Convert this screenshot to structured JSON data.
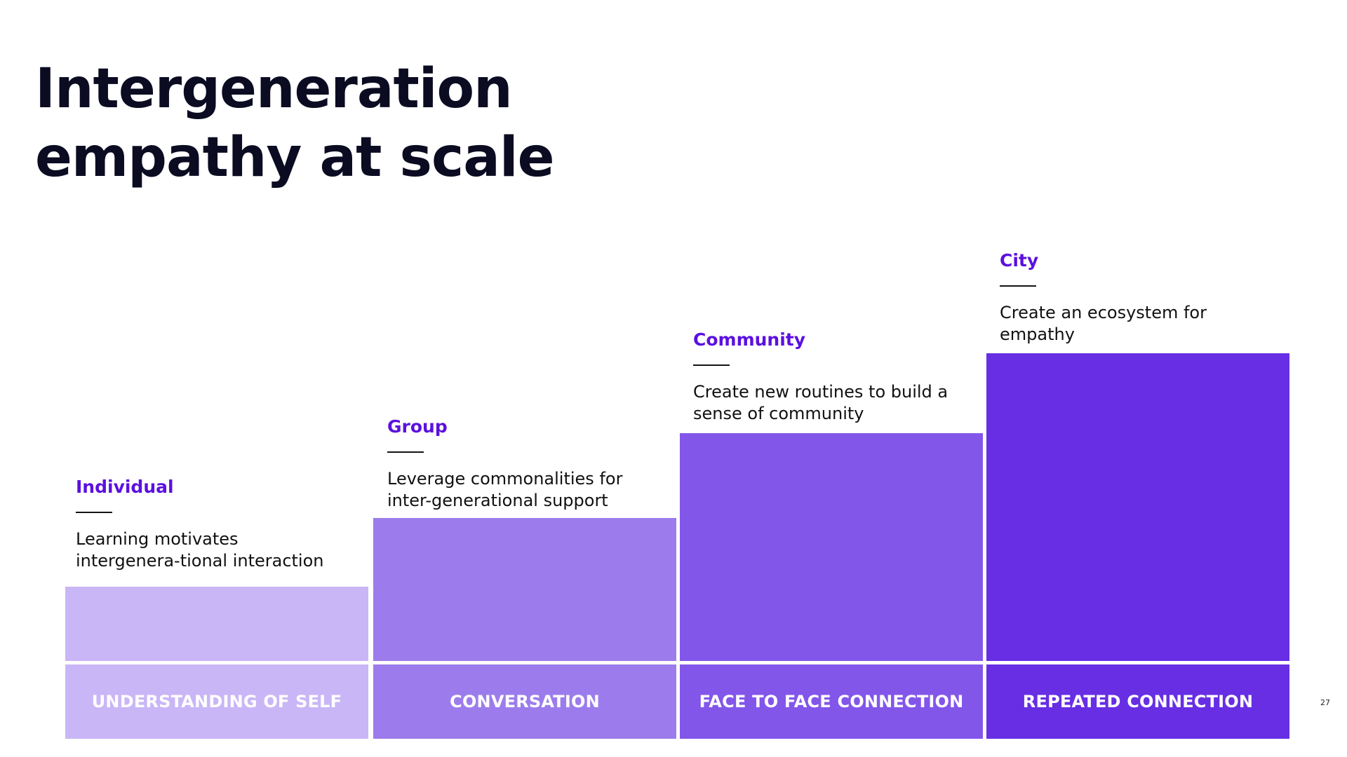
{
  "title": {
    "line1": "Intergeneration",
    "line2": "empathy at scale"
  },
  "stages": [
    {
      "heading": "Individual",
      "description": "Learning motivates intergenera-tional interaction",
      "footer_label": "UNDERSTANDING OF SELF",
      "color": "#c9b6f6"
    },
    {
      "heading": "Group",
      "description": "Leverage commonalities for inter-generational support",
      "footer_label": "CONVERSATION",
      "color": "#9c7cec"
    },
    {
      "heading": "Community",
      "description": "Create new routines to build a sense of community",
      "footer_label": "FACE TO FACE CONNECTION",
      "color": "#8356ea"
    },
    {
      "heading": "City",
      "description": "Create an ecosystem for empathy",
      "footer_label": "REPEATED CONNECTION",
      "color": "#672ee4"
    }
  ],
  "colors": {
    "title": "#0b0b22",
    "heading_accent": "#5b10df"
  },
  "page_number": "27"
}
